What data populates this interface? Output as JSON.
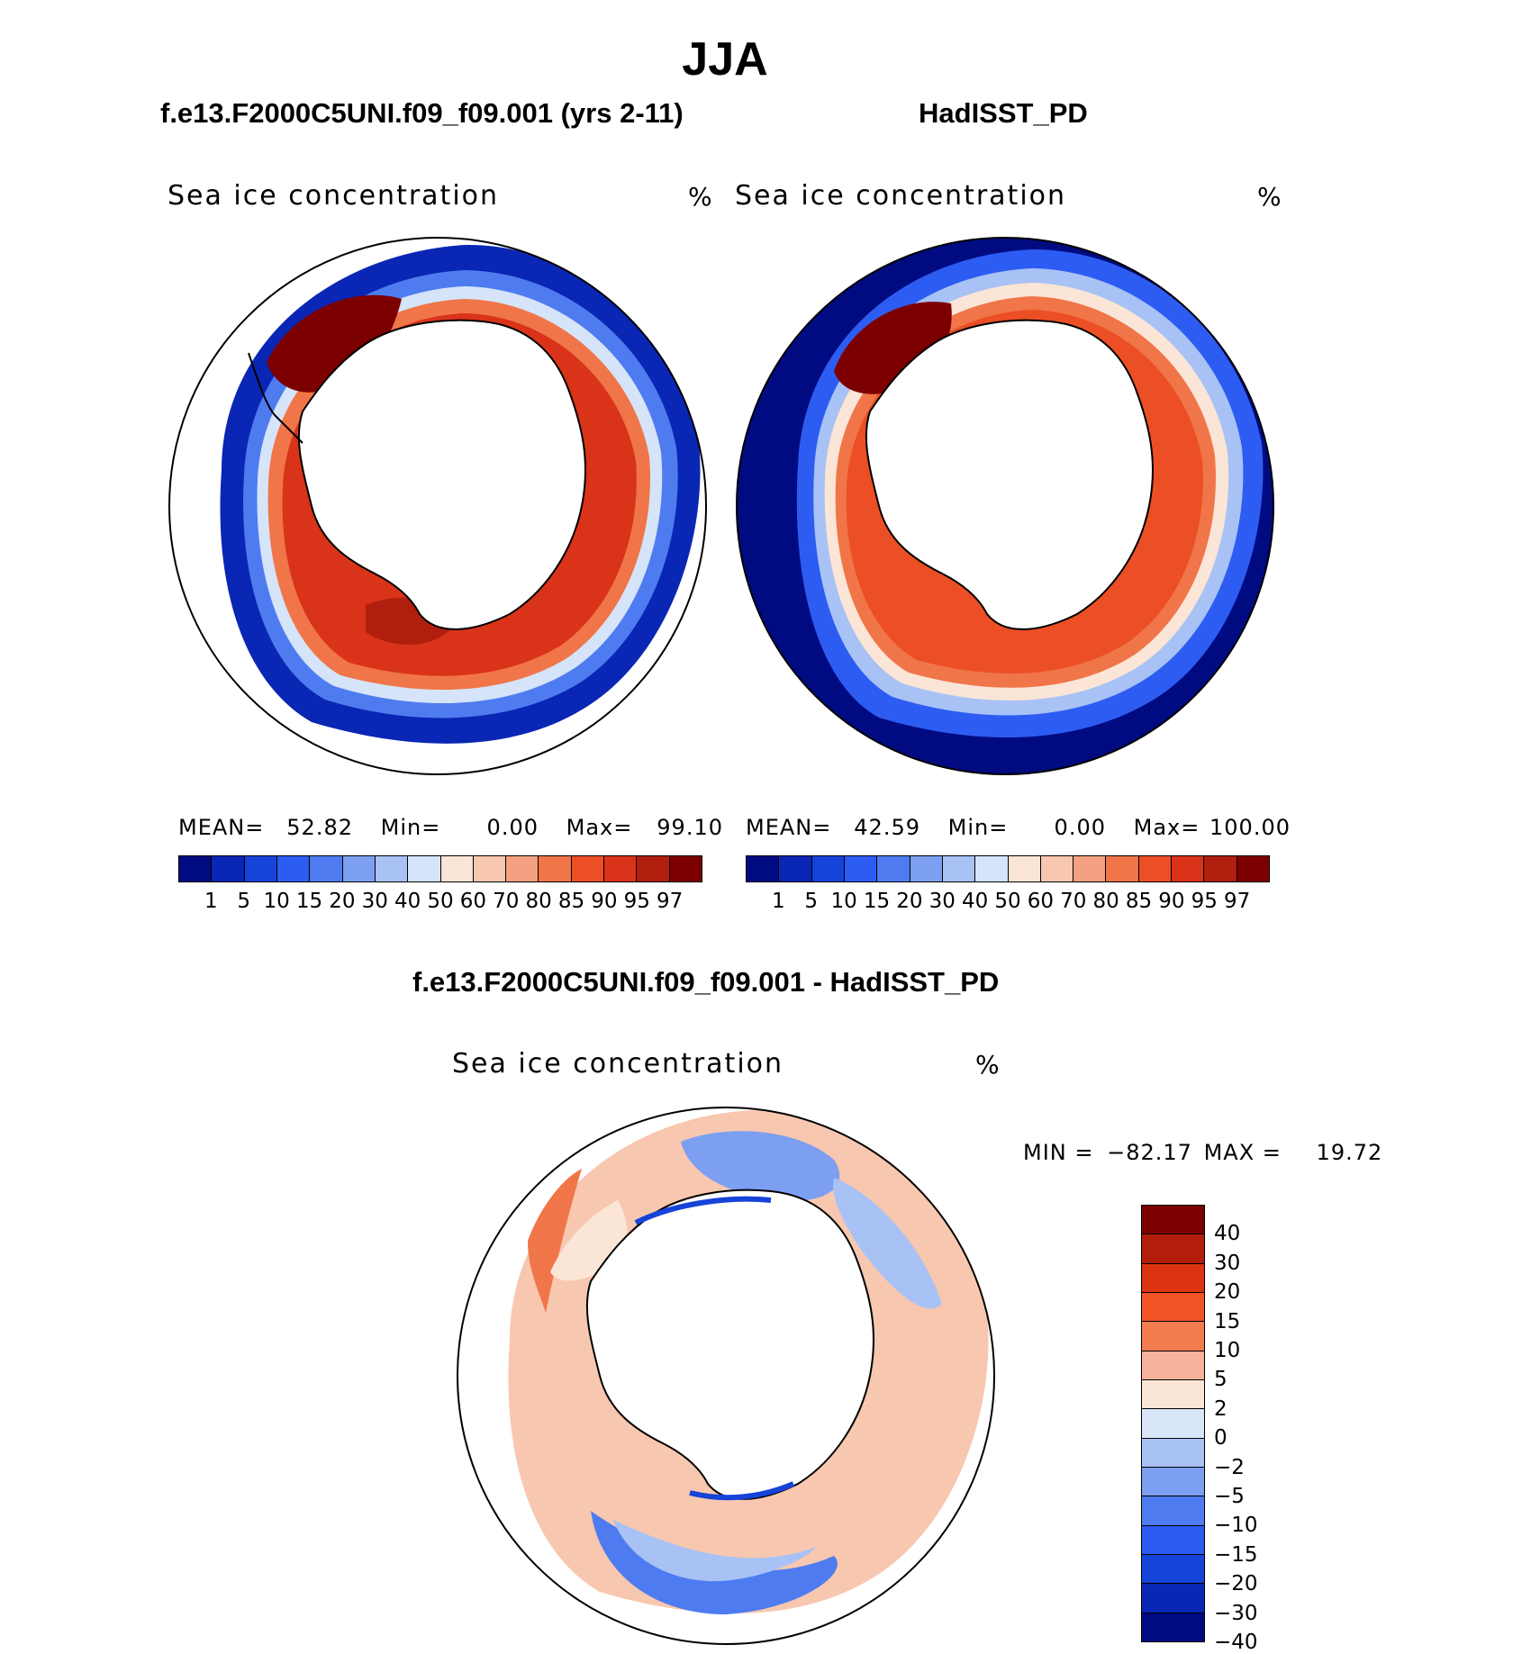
{
  "title": "JJA",
  "panels": {
    "left": {
      "case_title": "f.e13.F2000C5UNI.f09_f09.001 (yrs 2-11)",
      "variable": "Sea ice concentration",
      "units": "%",
      "stats": {
        "mean_label": "MEAN=",
        "mean": "52.82",
        "min_label": "Min=",
        "min": "0.00",
        "max_label": "Max=",
        "max": "99.10"
      }
    },
    "right": {
      "case_title": "HadISST_PD",
      "variable": "Sea ice concentration",
      "units": "%",
      "stats": {
        "mean_label": "MEAN=",
        "mean": "42.59",
        "min_label": "Min=",
        "min": "0.00",
        "max_label": "Max=",
        "max": "100.00"
      }
    },
    "diff": {
      "case_title": "f.e13.F2000C5UNI.f09_f09.001 - HadISST_PD",
      "variable": "Sea ice concentration",
      "units": "%",
      "stats": {
        "min_label": "MIN =",
        "min": "−82.17",
        "max_label": "MAX =",
        "max": "19.72"
      }
    }
  },
  "colorbar_abs": {
    "colors": [
      "#000b82",
      "#0a26b4",
      "#1643d8",
      "#2d5cf2",
      "#4e7cf0",
      "#7c9ff2",
      "#a8c2f5",
      "#d5e4f8",
      "#fbe5d6",
      "#f8c7af",
      "#f5a081",
      "#f07549",
      "#ec4f25",
      "#d9331a",
      "#b01e0d",
      "#7d0000"
    ],
    "labels": [
      "1",
      "5",
      "10",
      "15",
      "20",
      "30",
      "40",
      "50",
      "60",
      "70",
      "80",
      "85",
      "90",
      "95",
      "97"
    ]
  },
  "colorbar_diff": {
    "colors": [
      "#7d0000",
      "#b31d0c",
      "#dc3410",
      "#f25428",
      "#f37c4f",
      "#f7b29c",
      "#fbe5d6",
      "#d8e6f8",
      "#a8c2f5",
      "#7c9ff2",
      "#4e7cf0",
      "#2d5cf2",
      "#1643d8",
      "#0a26b4",
      "#000b82"
    ],
    "labels": [
      "40",
      "30",
      "20",
      "15",
      "10",
      "5",
      "2",
      "0",
      "−2",
      "−5",
      "−10",
      "−15",
      "−20",
      "−30",
      "−40"
    ]
  }
}
